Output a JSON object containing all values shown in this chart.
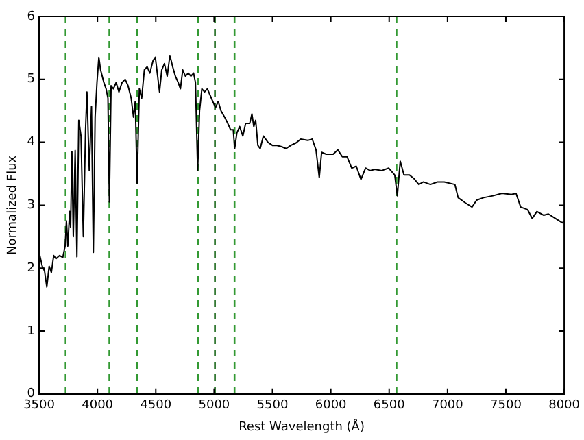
{
  "chart_data": {
    "type": "line",
    "xlabel": "Rest Wavelength (Å)",
    "ylabel": "Normalized Flux",
    "xlim": [
      3500,
      8000
    ],
    "xticks": [
      3500,
      4000,
      4500,
      5000,
      5500,
      6000,
      6500,
      7000,
      7500,
      8000
    ],
    "ylim": [
      0,
      6
    ],
    "yticks": [
      0,
      1,
      2,
      3,
      4,
      5,
      6
    ],
    "grid": false,
    "legend": false,
    "marker": "none",
    "line_style": "solid",
    "ref_lines": [
      {
        "axis": "x",
        "value": 3727,
        "color": "#339933",
        "line_style": "dashed"
      },
      {
        "axis": "x",
        "value": 4102,
        "color": "#339933",
        "line_style": "dashed"
      },
      {
        "axis": "x",
        "value": 4340,
        "color": "#339933",
        "line_style": "dashed"
      },
      {
        "axis": "x",
        "value": 4861,
        "color": "#339933",
        "line_style": "dashed"
      },
      {
        "axis": "x",
        "value": 5007,
        "color": "#1f6b1f",
        "line_style": "dashed"
      },
      {
        "axis": "x",
        "value": 5175,
        "color": "#339933",
        "line_style": "dashed"
      },
      {
        "axis": "x",
        "value": 6563,
        "color": "#339933",
        "line_style": "dashed"
      }
    ],
    "series": [
      {
        "color": "#000000",
        "x": [
          3500,
          3527,
          3547,
          3566,
          3586,
          3605,
          3625,
          3644,
          3676,
          3703,
          3723,
          3734,
          3746,
          3762,
          3770,
          3781,
          3793,
          3809,
          3824,
          3840,
          3859,
          3879,
          3898,
          3910,
          3930,
          3949,
          3965,
          3980,
          3996,
          4012,
          4027,
          4055,
          4074,
          4090,
          4102,
          4117,
          4137,
          4160,
          4184,
          4211,
          4238,
          4262,
          4289,
          4309,
          4324,
          4340,
          4359,
          4379,
          4402,
          4426,
          4449,
          4477,
          4496,
          4516,
          4532,
          4551,
          4574,
          4598,
          4621,
          4645,
          4668,
          4692,
          4711,
          4731,
          4754,
          4778,
          4801,
          4824,
          4840,
          4859,
          4875,
          4895,
          4918,
          4942,
          4965,
          4988,
          5012,
          5035,
          5059,
          5090,
          5117,
          5141,
          5164,
          5176,
          5195,
          5219,
          5246,
          5270,
          5285,
          5305,
          5324,
          5340,
          5356,
          5375,
          5395,
          5422,
          5461,
          5500,
          5539,
          5578,
          5617,
          5657,
          5702,
          5742,
          5802,
          5841,
          5873,
          5901,
          5921,
          5960,
          6020,
          6060,
          6099,
          6139,
          6179,
          6218,
          6258,
          6298,
          6337,
          6377,
          6436,
          6496,
          6548,
          6570,
          6595,
          6627,
          6674,
          6714,
          6754,
          6794,
          6853,
          6913,
          6972,
          7063,
          7091,
          7151,
          7210,
          7250,
          7309,
          7389,
          7468,
          7548,
          7587,
          7627,
          7686,
          7726,
          7766,
          7825,
          7865,
          7924,
          7984,
          8000
        ],
        "values": [
          2.25,
          2.03,
          1.95,
          1.7,
          2.03,
          1.93,
          2.2,
          2.15,
          2.2,
          2.17,
          2.35,
          2.75,
          2.35,
          2.9,
          2.65,
          3.85,
          2.5,
          3.87,
          2.18,
          4.35,
          4.1,
          2.5,
          4.2,
          4.8,
          3.55,
          4.57,
          2.25,
          4.4,
          4.95,
          5.35,
          5.15,
          4.95,
          4.85,
          4.7,
          3.05,
          4.9,
          4.85,
          4.95,
          4.8,
          4.95,
          5.0,
          4.9,
          4.7,
          4.4,
          4.65,
          3.35,
          4.85,
          4.7,
          5.15,
          5.2,
          5.1,
          5.3,
          5.35,
          5.05,
          4.8,
          5.15,
          5.25,
          5.05,
          5.38,
          5.2,
          5.05,
          4.95,
          4.85,
          5.15,
          5.05,
          5.1,
          5.05,
          5.1,
          4.95,
          3.55,
          4.5,
          4.85,
          4.8,
          4.85,
          4.75,
          4.65,
          4.55,
          4.65,
          4.5,
          4.4,
          4.3,
          4.2,
          4.2,
          3.9,
          4.15,
          4.25,
          4.1,
          4.3,
          4.3,
          4.3,
          4.45,
          4.25,
          4.35,
          3.95,
          3.9,
          4.1,
          4.0,
          3.95,
          3.95,
          3.93,
          3.9,
          3.95,
          3.99,
          4.05,
          4.03,
          4.05,
          3.88,
          3.44,
          3.84,
          3.81,
          3.81,
          3.88,
          3.77,
          3.77,
          3.59,
          3.62,
          3.41,
          3.59,
          3.55,
          3.57,
          3.55,
          3.59,
          3.48,
          3.15,
          3.7,
          3.48,
          3.48,
          3.42,
          3.33,
          3.37,
          3.33,
          3.37,
          3.37,
          3.33,
          3.12,
          3.04,
          2.97,
          3.08,
          3.12,
          3.15,
          3.19,
          3.17,
          3.19,
          2.97,
          2.93,
          2.79,
          2.9,
          2.84,
          2.86,
          2.79,
          2.72,
          2.75
        ]
      }
    ]
  }
}
